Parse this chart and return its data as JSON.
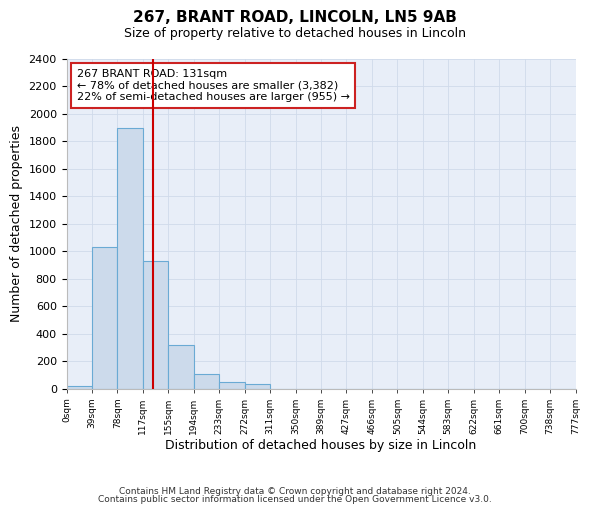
{
  "title": "267, BRANT ROAD, LINCOLN, LN5 9AB",
  "subtitle": "Size of property relative to detached houses in Lincoln",
  "xlabel": "Distribution of detached houses by size in Lincoln",
  "ylabel": "Number of detached properties",
  "bin_count": 20,
  "bar_heights": [
    20,
    1030,
    1900,
    930,
    320,
    105,
    50,
    30,
    0,
    0,
    0,
    0,
    0,
    0,
    0,
    0,
    0,
    0,
    0,
    0
  ],
  "bar_color": "#ccdaeb",
  "bar_edge_color": "#6aaad4",
  "tick_labels": [
    "0sqm",
    "39sqm",
    "78sqm",
    "117sqm",
    "155sqm",
    "194sqm",
    "233sqm",
    "272sqm",
    "311sqm",
    "350sqm",
    "389sqm",
    "427sqm",
    "466sqm",
    "505sqm",
    "544sqm",
    "583sqm",
    "622sqm",
    "661sqm",
    "700sqm",
    "738sqm",
    "777sqm"
  ],
  "ylim": [
    0,
    2400
  ],
  "yticks": [
    0,
    200,
    400,
    600,
    800,
    1000,
    1200,
    1400,
    1600,
    1800,
    2000,
    2200,
    2400
  ],
  "vline_bin": 3.385,
  "vline_color": "#cc0000",
  "annotation_title": "267 BRANT ROAD: 131sqm",
  "annotation_line1": "← 78% of detached houses are smaller (3,382)",
  "annotation_line2": "22% of semi-detached houses are larger (955) →",
  "footer_line1": "Contains HM Land Registry data © Crown copyright and database right 2024.",
  "footer_line2": "Contains public sector information licensed under the Open Government Licence v3.0.",
  "grid_color": "#d0daea",
  "background_color": "#e8eef8",
  "fig_background": "#ffffff"
}
